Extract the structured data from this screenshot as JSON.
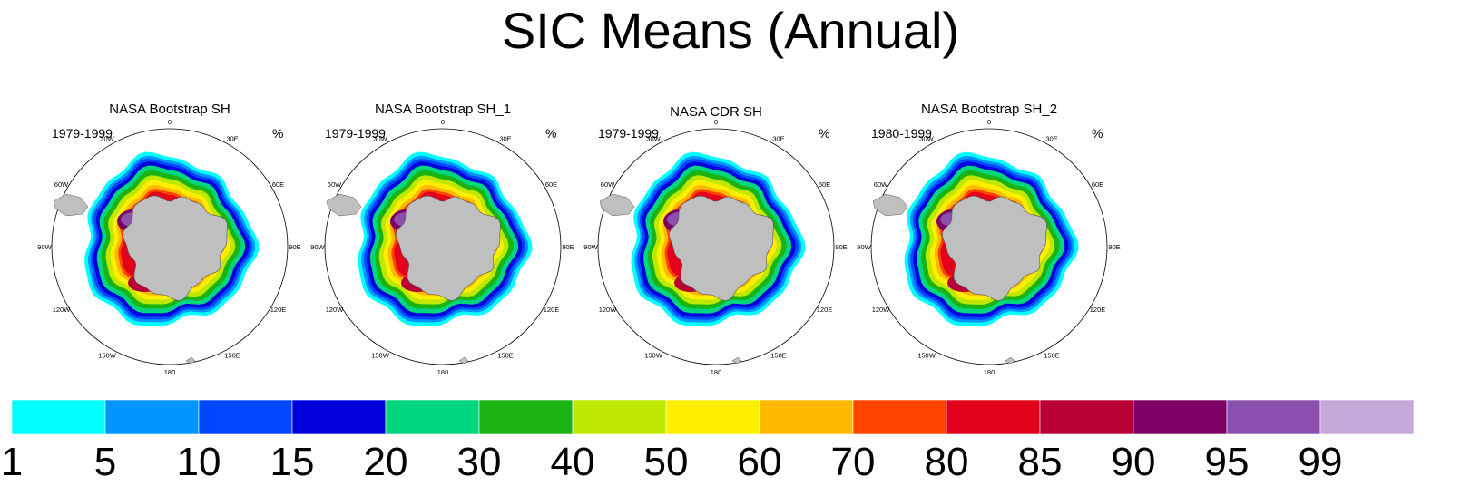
{
  "chart_data": {
    "type": "polar-map-panels",
    "title": "SIC Means (Annual)",
    "units": "%",
    "lon_labels": [
      "0",
      "30E",
      "60E",
      "90E",
      "120E",
      "150E",
      "180",
      "150W",
      "120W",
      "90W",
      "60W",
      "30W"
    ],
    "panels": [
      {
        "title": "NASA Bootstrap SH",
        "period": "1979-1999",
        "units": "%"
      },
      {
        "title": "NASA Bootstrap SH_1",
        "period": "1979-1999",
        "units": "%"
      },
      {
        "title": "NASA CDR SH",
        "period": "1979-1999",
        "units": "%"
      },
      {
        "title": "NASA Bootstrap SH_2",
        "period": "1980-1999",
        "units": "%"
      }
    ],
    "colorbar": {
      "levels": [
        "1",
        "5",
        "10",
        "15",
        "20",
        "30",
        "40",
        "50",
        "60",
        "70",
        "80",
        "85",
        "90",
        "95",
        "99"
      ],
      "colors": [
        "#00ffff",
        "#0095ff",
        "#0048ff",
        "#0000dc",
        "#00d67d",
        "#1ab312",
        "#bfe800",
        "#ffee00",
        "#ffb800",
        "#ff4400",
        "#e3001a",
        "#b80034",
        "#7d0066",
        "#8b4fad",
        "#c6a8d8"
      ]
    }
  }
}
